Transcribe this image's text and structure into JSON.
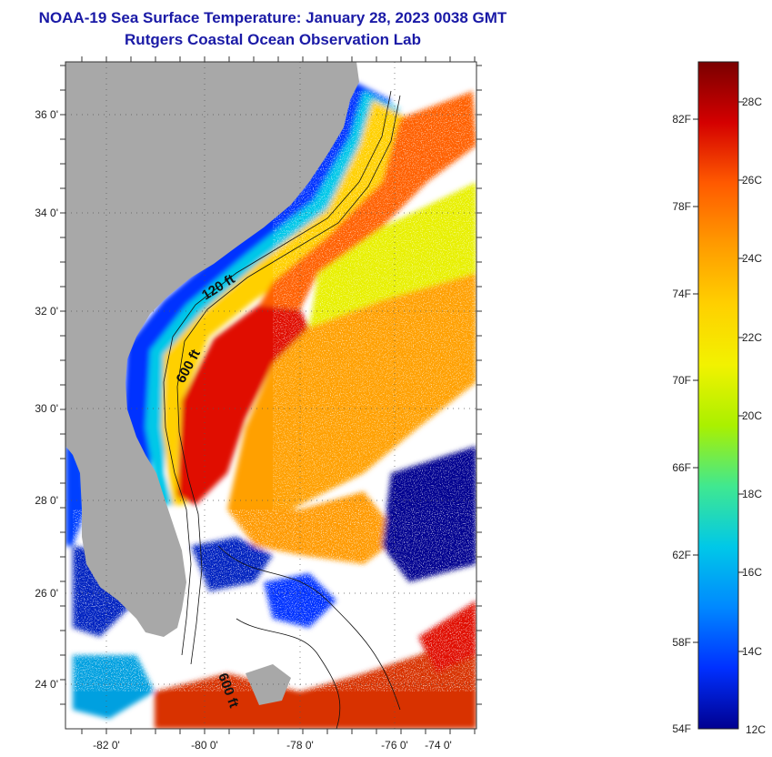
{
  "header": {
    "title": "NOAA-19 Sea Surface Temperature:  January 28, 2023 0038 GMT",
    "subtitle": "Rutgers Coastal Ocean Observation Lab"
  },
  "map": {
    "lon_ticks": [
      "-82 0'",
      "-80 0'",
      "-78 0'",
      "-76 0'",
      "-74 0'"
    ],
    "lat_ticks": [
      "36 0'",
      "34 0'",
      "32 0'",
      "30 0'",
      "28 0'",
      "26 0'",
      "24 0'"
    ],
    "contour_labels": [
      "120 ft",
      "600 ft",
      "600 ft"
    ],
    "colors": {
      "land": "#a8a8a8",
      "cloud": "#ffffff",
      "frame": "#333333"
    }
  },
  "colorbar": {
    "fahrenheit_labels": [
      "82F",
      "78F",
      "74F",
      "70F",
      "66F",
      "62F",
      "58F",
      "54F"
    ],
    "celsius_labels": [
      "28C",
      "26C",
      "24C",
      "22C",
      "20C",
      "18C",
      "16C",
      "14C",
      "12C"
    ],
    "stops": [
      "#7a0000",
      "#d40000",
      "#ff5a00",
      "#ff9a00",
      "#ffd000",
      "#f2f200",
      "#aaf000",
      "#40e890",
      "#00c8e8",
      "#0088ff",
      "#0030ff",
      "#000090"
    ]
  }
}
